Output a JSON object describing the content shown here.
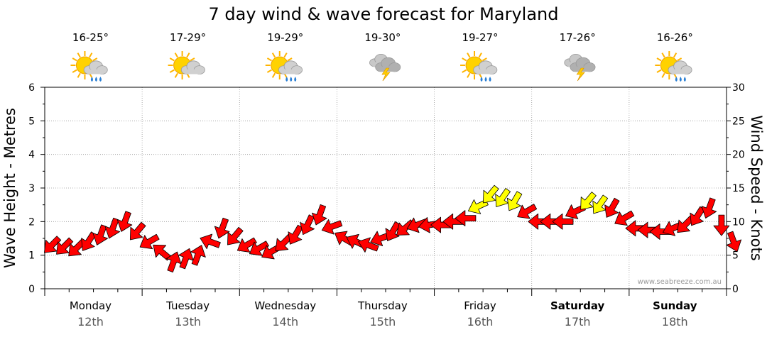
{
  "chart_data": {
    "type": "line",
    "title": "7 day wind & wave forecast for Maryland",
    "ylabel_left": "Wave Height - Metres",
    "ylabel_right": "Wind Speed - Knots",
    "ylim_left": [
      0,
      6
    ],
    "ylim_right": [
      0,
      30
    ],
    "yticks_left": [
      "0",
      "1",
      "2",
      "3",
      "4",
      "5",
      "6"
    ],
    "yticks_right": [
      "0",
      "5",
      "10",
      "15",
      "20",
      "25",
      "30"
    ],
    "grid": true,
    "watermark": "www.seabreeze.com.au",
    "days": [
      {
        "day": "Monday",
        "date": "12th",
        "temp": "16-25°",
        "weather": "partly-cloudy-rain-icon",
        "bold": false
      },
      {
        "day": "Tuesday",
        "date": "13th",
        "temp": "17-29°",
        "weather": "partly-cloudy-icon",
        "bold": false
      },
      {
        "day": "Wednesday",
        "date": "14th",
        "temp": "19-29°",
        "weather": "partly-cloudy-rain-icon",
        "bold": false
      },
      {
        "day": "Thursday",
        "date": "15th",
        "temp": "19-30°",
        "weather": "thunderstorm-icon",
        "bold": false
      },
      {
        "day": "Friday",
        "date": "16th",
        "temp": "19-27°",
        "weather": "partly-cloudy-rain-icon",
        "bold": false
      },
      {
        "day": "Saturday",
        "date": "17th",
        "temp": "17-26°",
        "weather": "thunderstorm-icon",
        "bold": true
      },
      {
        "day": "Sunday",
        "date": "18th",
        "temp": "16-26°",
        "weather": "partly-cloudy-rain-icon",
        "bold": true
      }
    ],
    "series": [
      {
        "name": "Wind",
        "unit": "knots",
        "x_days": [
          0.0,
          0.25,
          0.5,
          0.75,
          1.0,
          1.25,
          1.5,
          1.75,
          2.0,
          2.25,
          2.5,
          2.75,
          3.0,
          3.25,
          3.5,
          3.75,
          4.0,
          4.25,
          4.5,
          4.75,
          5.0,
          5.25,
          5.5,
          5.75,
          6.0,
          6.25,
          6.5,
          6.75,
          7.0
        ],
        "speed_knots": [
          6.5,
          6.0,
          8.0,
          10.0,
          7.0,
          4.0,
          5.0,
          9.0,
          6.5,
          5.5,
          8.0,
          11.0,
          7.5,
          6.5,
          8.5,
          9.5,
          9.5,
          10.5,
          14.0,
          13.0,
          10.0,
          10.0,
          13.0,
          12.0,
          9.0,
          8.5,
          9.5,
          12.0,
          7.0
        ],
        "dir_deg": [
          45,
          45,
          20,
          20,
          60,
          200,
          200,
          20,
          60,
          60,
          30,
          20,
          120,
          110,
          30,
          70,
          90,
          90,
          40,
          30,
          90,
          90,
          40,
          30,
          90,
          90,
          45,
          20,
          340
        ],
        "color_scale": [
          {
            "max": 12,
            "color": "#ff0000"
          },
          {
            "max": 99,
            "color": "#ffff00"
          }
        ]
      }
    ]
  }
}
